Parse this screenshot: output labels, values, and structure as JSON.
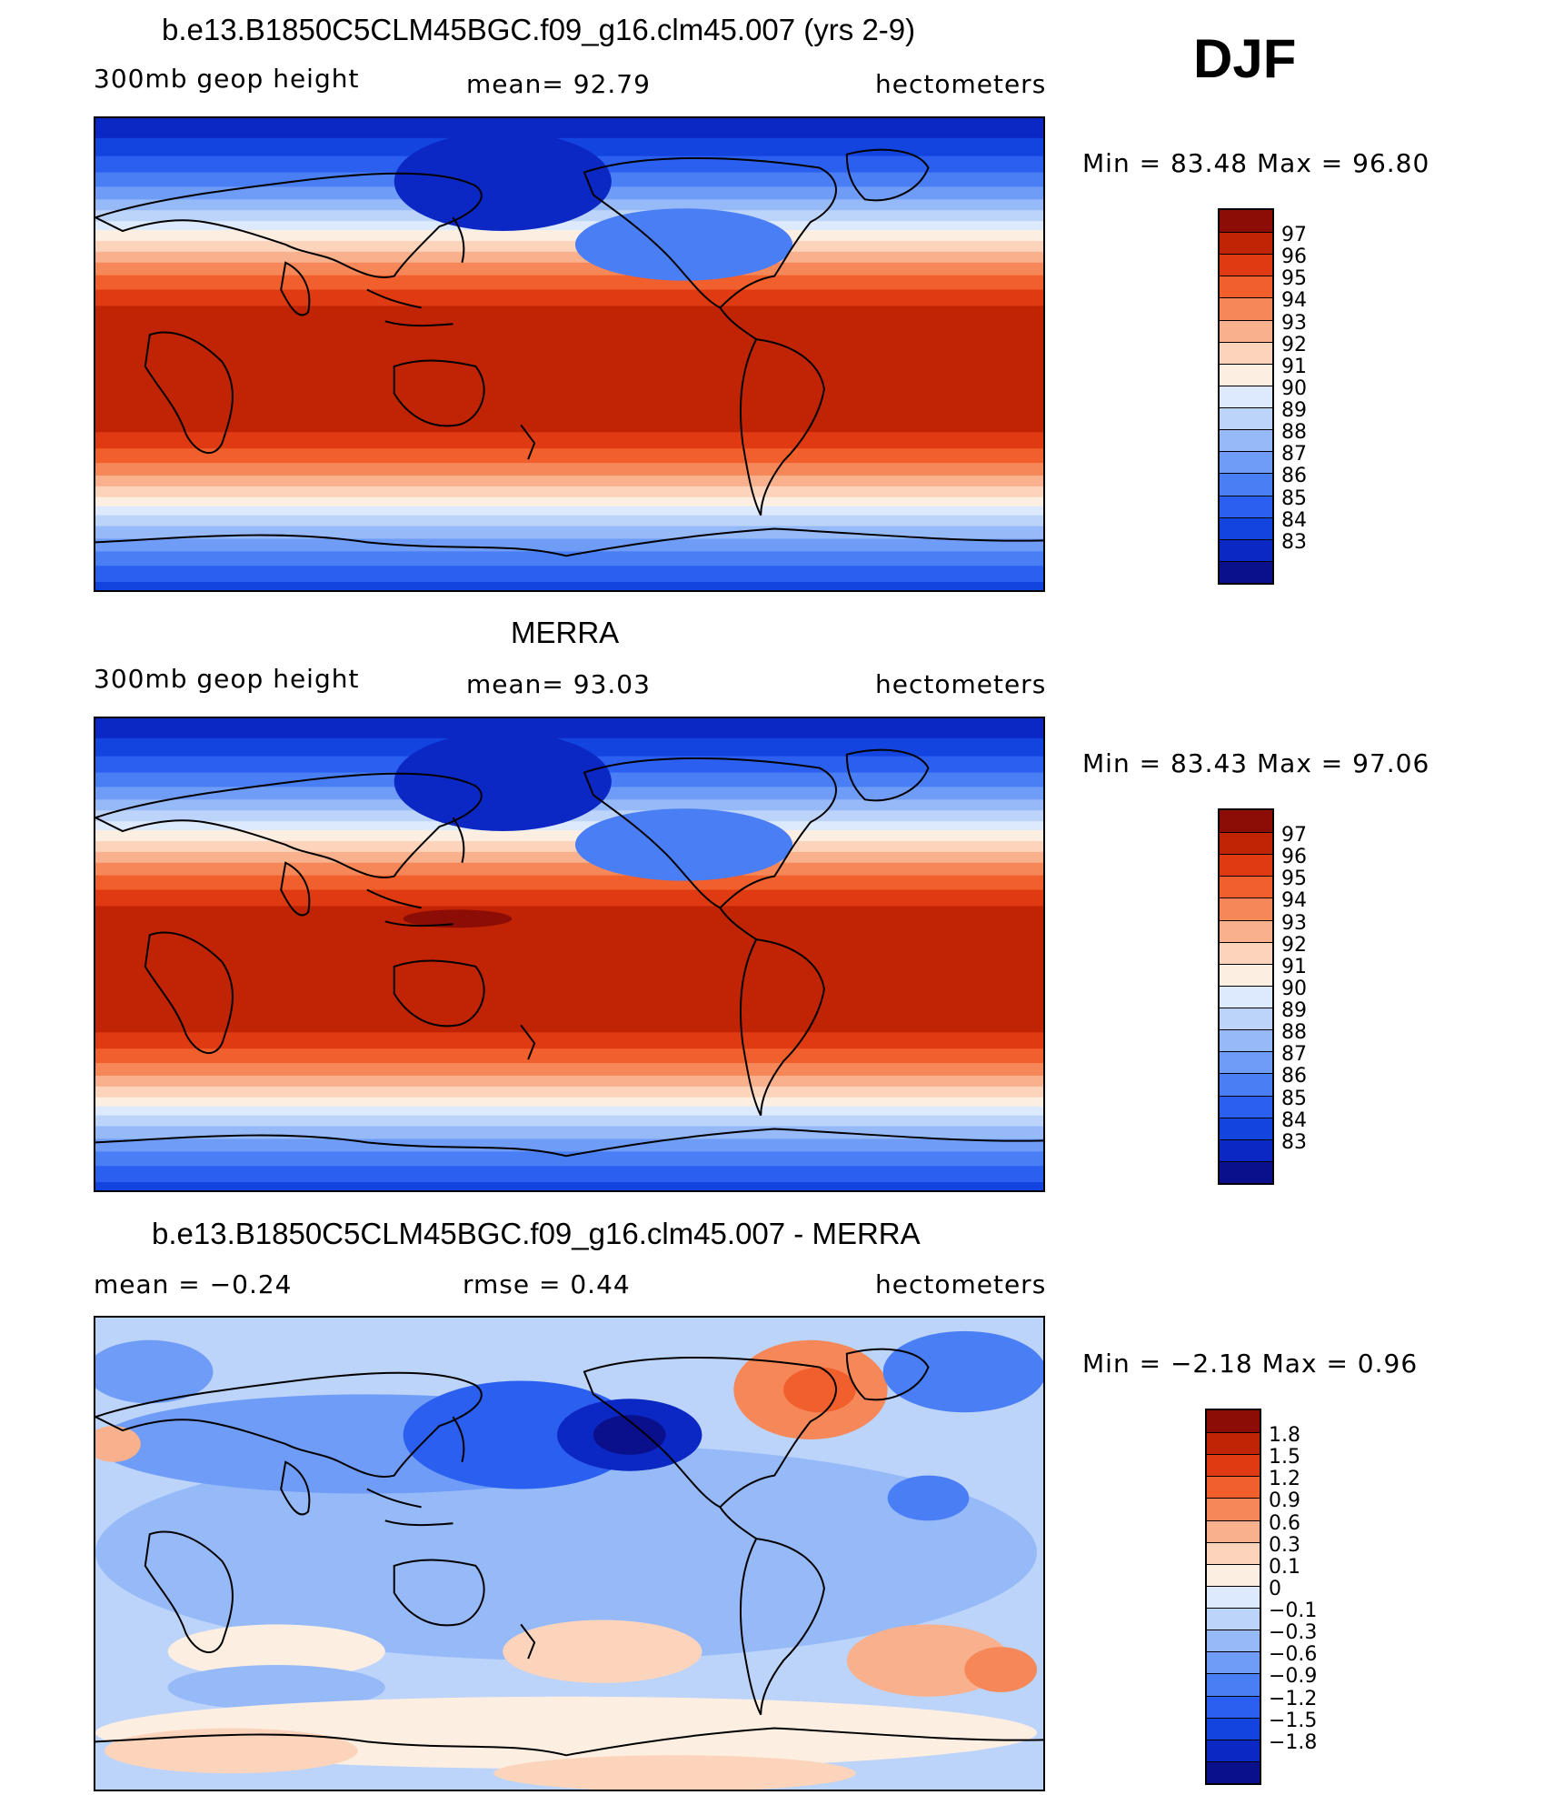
{
  "season": "DJF",
  "colors": {
    "abs_scale": [
      "#0a0f8c",
      "#0c28c4",
      "#1444e0",
      "#2a5ff0",
      "#4a7ef5",
      "#6f9cf7",
      "#96b9f8",
      "#bcd3fa",
      "#dde9fc",
      "#fdeee2",
      "#fcd4bb",
      "#f9b08c",
      "#f68758",
      "#f15f2c",
      "#e03a12",
      "#c12305",
      "#8c0d05"
    ],
    "diff_scale": [
      "#0a0f8c",
      "#0c28c4",
      "#1444e0",
      "#2a5ff0",
      "#4a7ef5",
      "#6f9cf7",
      "#96b9f8",
      "#bcd3fa",
      "#dde9fc",
      "#fdeee2",
      "#fcd4bb",
      "#f9b08c",
      "#f68758",
      "#f15f2c",
      "#e03a12",
      "#c12305",
      "#8c0d05"
    ]
  },
  "panels": [
    {
      "title": "b.e13.B1850C5CLM45BGC.f09_g16.clm45.007 (yrs 2-9)",
      "left_label": "300mb  geop  height",
      "center_label": "mean=   92.79",
      "right_label": "hectometers",
      "minmax": "Min =   83.48  Max =   96.80",
      "colorbar_labels": [
        "97",
        "96",
        "95",
        "94",
        "93",
        "92",
        "91",
        "90",
        "89",
        "88",
        "87",
        "86",
        "85",
        "84",
        "83"
      ],
      "kind": "abs"
    },
    {
      "title": "MERRA",
      "left_label": "300mb  geop  height",
      "center_label": "mean=   93.03",
      "right_label": "hectometers",
      "minmax": "Min =   83.43  Max =   97.06",
      "colorbar_labels": [
        "97",
        "96",
        "95",
        "94",
        "93",
        "92",
        "91",
        "90",
        "89",
        "88",
        "87",
        "86",
        "85",
        "84",
        "83"
      ],
      "kind": "abs"
    },
    {
      "title": "b.e13.B1850C5CLM45BGC.f09_g16.clm45.007 - MERRA",
      "left_label": "mean =   −0.24",
      "center_label": "rmse =    0.44",
      "right_label": "hectometers",
      "minmax": "Min =   −2.18  Max =     0.96",
      "colorbar_labels": [
        "1.8",
        "1.5",
        "1.2",
        "0.9",
        "0.6",
        "0.3",
        "0.1",
        "0",
        "−0.1",
        "−0.3",
        "−0.6",
        "−0.9",
        "−1.2",
        "−1.5",
        "−1.8"
      ],
      "kind": "diff"
    }
  ]
}
